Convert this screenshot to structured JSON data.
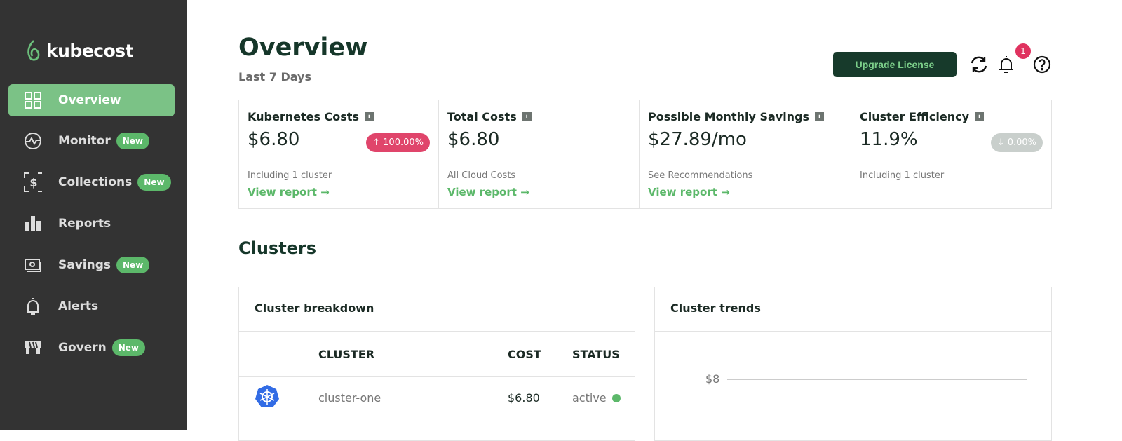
{
  "brand": {
    "name": "kubecost",
    "accent": "#7bc286"
  },
  "sidebar": {
    "items": [
      {
        "label": "Overview",
        "icon": "grid-icon",
        "active": true
      },
      {
        "label": "Monitor",
        "icon": "monitor-icon",
        "badge": "New"
      },
      {
        "label": "Collections",
        "icon": "dollar-frame-icon",
        "badge": "New"
      },
      {
        "label": "Reports",
        "icon": "bar-chart-icon"
      },
      {
        "label": "Savings",
        "icon": "money-icon",
        "badge": "New"
      },
      {
        "label": "Alerts",
        "icon": "bell-icon"
      },
      {
        "label": "Govern",
        "icon": "govern-icon",
        "badge": "New"
      }
    ]
  },
  "header": {
    "title": "Overview",
    "subtitle": "Last 7 Days",
    "upgrade_label": "Upgrade License",
    "notification_count": "1"
  },
  "cards": [
    {
      "title": "Kubernetes Costs",
      "value": "$6.80",
      "change": "100.00%",
      "change_dir": "up",
      "change_color": "#e0456b",
      "note": "Including 1 cluster",
      "link": "View report"
    },
    {
      "title": "Total Costs",
      "value": "$6.80",
      "note": "All Cloud Costs",
      "link": "View report"
    },
    {
      "title": "Possible Monthly Savings",
      "value": "$27.89/mo",
      "note": "See Recommendations",
      "link": "View report"
    },
    {
      "title": "Cluster Efficiency",
      "value": "11.9%",
      "change": "0.00%",
      "change_dir": "down",
      "change_color": "#c9cfcc",
      "note": "Including 1 cluster"
    }
  ],
  "clusters": {
    "title": "Clusters",
    "breakdown": {
      "title": "Cluster breakdown",
      "columns": [
        "CLUSTER",
        "COST",
        "STATUS"
      ],
      "rows": [
        {
          "name": "cluster-one",
          "cost": "$6.80",
          "status": "active"
        }
      ]
    },
    "trends": {
      "title": "Cluster trends",
      "y_tick": "$8"
    }
  }
}
